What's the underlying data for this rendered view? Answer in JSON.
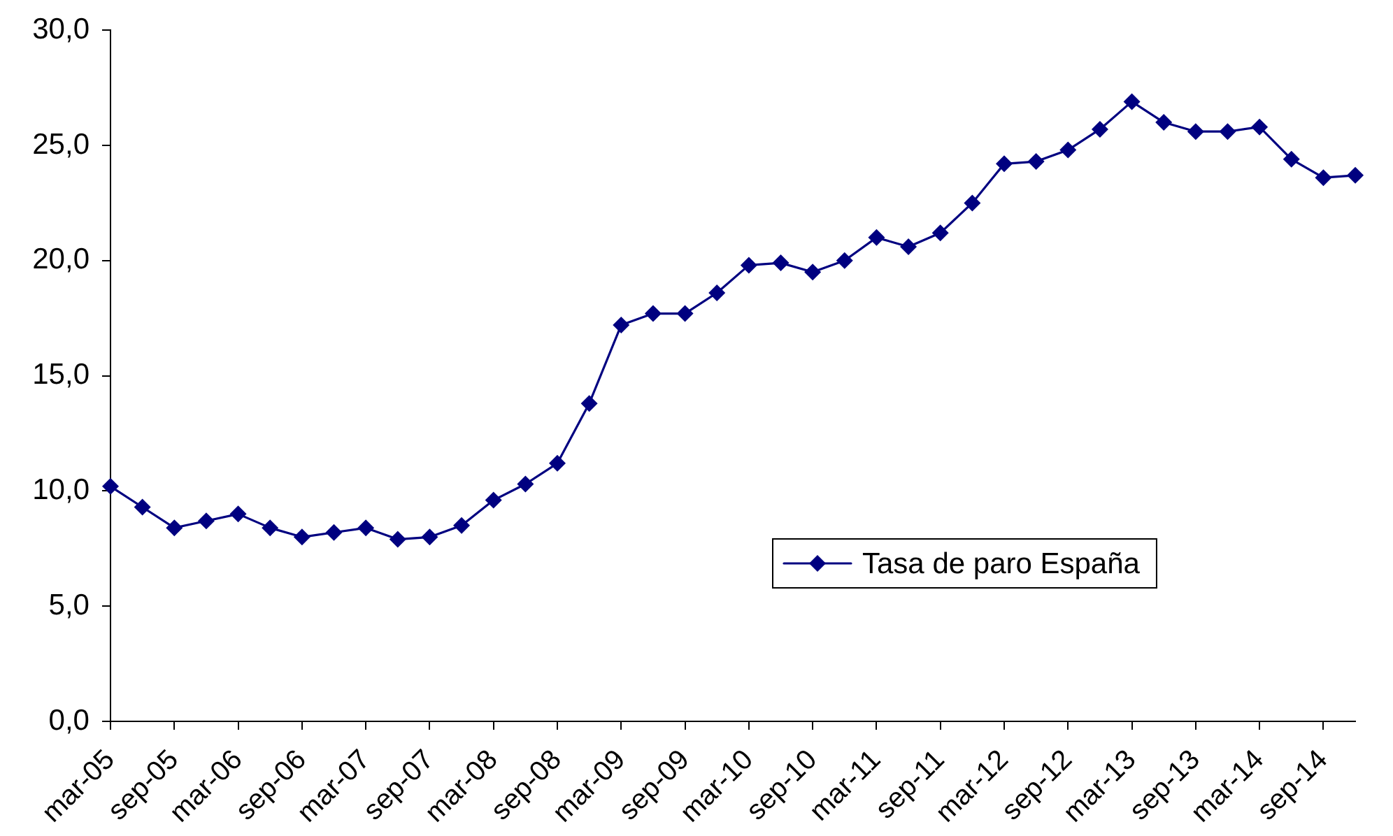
{
  "chart_data": {
    "type": "line",
    "categories": [
      "mar-05",
      null,
      "sep-05",
      null,
      "mar-06",
      null,
      "sep-06",
      null,
      "mar-07",
      null,
      "sep-07",
      null,
      "mar-08",
      null,
      "sep-08",
      null,
      "mar-09",
      null,
      "sep-09",
      null,
      "mar-10",
      null,
      "sep-10",
      null,
      "mar-11",
      null,
      "sep-11",
      null,
      "mar-12",
      null,
      "sep-12",
      null,
      "mar-13",
      null,
      "sep-13",
      null,
      "mar-14",
      null,
      "sep-14",
      null
    ],
    "series": [
      {
        "name": "Tasa de paro España",
        "color": "#000080",
        "values": [
          10.2,
          9.3,
          8.4,
          8.7,
          9.0,
          8.4,
          8.0,
          8.2,
          8.4,
          7.9,
          8.0,
          8.5,
          9.6,
          10.3,
          11.2,
          13.8,
          17.2,
          17.7,
          17.7,
          18.6,
          19.8,
          19.9,
          19.5,
          20.0,
          21.0,
          20.6,
          21.2,
          22.5,
          24.2,
          24.3,
          24.8,
          25.7,
          26.9,
          26.0,
          25.6,
          25.6,
          25.8,
          24.4,
          23.6,
          23.7
        ]
      }
    ],
    "ylim": [
      0,
      30
    ],
    "yticks": [
      {
        "value": 0,
        "label": "0,0"
      },
      {
        "value": 5,
        "label": "5,0"
      },
      {
        "value": 10,
        "label": "10,0"
      },
      {
        "value": 15,
        "label": "15,0"
      },
      {
        "value": 20,
        "label": "20,0"
      },
      {
        "value": 25,
        "label": "25,0"
      },
      {
        "value": 30,
        "label": "30,0"
      }
    ],
    "legend": "bottom right",
    "marker": "diamond",
    "line_style": "solid"
  }
}
